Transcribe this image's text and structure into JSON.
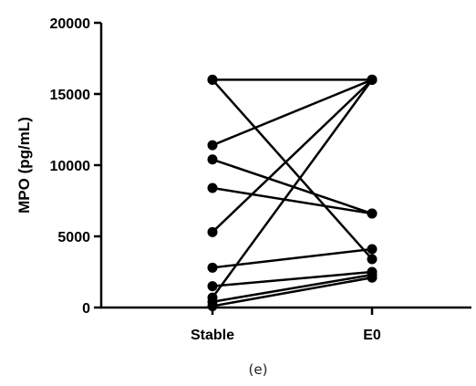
{
  "chart_data": {
    "type": "line",
    "title": "",
    "xlabel": "",
    "ylabel": "MPO (pg/mL)",
    "categories": [
      "Stable",
      "E0"
    ],
    "ylim": [
      0,
      20000
    ],
    "yticks": [
      "0",
      "5000",
      "10000",
      "15000",
      "20000"
    ],
    "grid": false,
    "legend": "none",
    "marker": "filled-circle",
    "line_color": "#000000",
    "pairs": [
      {
        "values": [
          16000,
          3400
        ]
      },
      {
        "values": [
          11400,
          16000
        ]
      },
      {
        "values": [
          10400,
          6600
        ]
      },
      {
        "values": [
          8400,
          6600
        ]
      },
      {
        "values": [
          5300,
          16000
        ]
      },
      {
        "values": [
          2800,
          4100
        ]
      },
      {
        "values": [
          1500,
          2500
        ]
      },
      {
        "values": [
          700,
          16000
        ]
      },
      {
        "values": [
          400,
          2300
        ]
      },
      {
        "values": [
          100,
          2100
        ]
      },
      {
        "values": [
          16000,
          16000
        ]
      }
    ]
  },
  "caption": "(e)"
}
